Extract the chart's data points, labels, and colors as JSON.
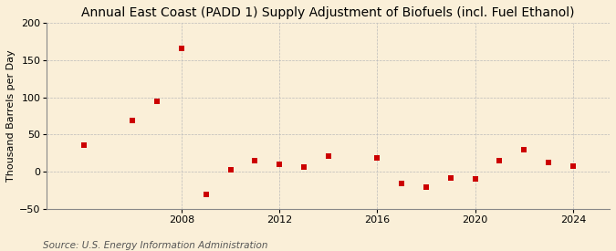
{
  "title": "Annual East Coast (PADD 1) Supply Adjustment of Biofuels (incl. Fuel Ethanol)",
  "ylabel": "Thousand Barrels per Day",
  "source": "Source: U.S. Energy Information Administration",
  "background_color": "#faefd8",
  "years": [
    2004,
    2006,
    2007,
    2008,
    2009,
    2010,
    2011,
    2012,
    2013,
    2014,
    2016,
    2017,
    2018,
    2019,
    2020,
    2021,
    2022,
    2023,
    2024
  ],
  "values": [
    36,
    69,
    95,
    165,
    -30,
    3,
    15,
    10,
    6,
    21,
    19,
    -15,
    -20,
    -8,
    -10,
    15,
    30,
    12,
    8
  ],
  "xlim": [
    2002.5,
    2025.5
  ],
  "ylim": [
    -50,
    200
  ],
  "yticks": [
    -50,
    0,
    50,
    100,
    150,
    200
  ],
  "xticks": [
    2008,
    2012,
    2016,
    2020,
    2024
  ],
  "marker_color": "#cc0000",
  "marker_size": 5,
  "grid_color": "#bbbbbb",
  "title_fontsize": 10,
  "label_fontsize": 8,
  "tick_fontsize": 8,
  "source_fontsize": 7.5
}
